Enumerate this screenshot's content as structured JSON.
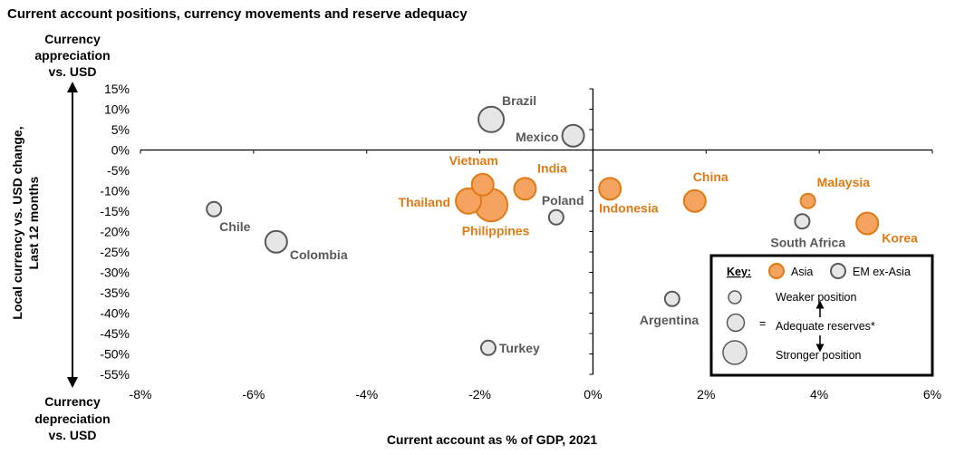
{
  "chart_data": {
    "type": "scatter",
    "title": "Current account positions, currency movements and reserve adequacy",
    "xlabel": "Current account as % of GDP, 2021",
    "ylabel_lines": [
      "Local currency vs. USD change,",
      "Last 12 months"
    ],
    "y_top_caption": [
      "Currency",
      "appreciation",
      "vs. USD"
    ],
    "y_bottom_caption": [
      "Currency",
      "depreciation",
      "vs. USD"
    ],
    "xlim": [
      -8,
      6
    ],
    "ylim": [
      -55,
      15
    ],
    "x_ticks": [
      -8,
      -6,
      -4,
      -2,
      0,
      2,
      4,
      6
    ],
    "x_tick_labels": [
      "-8%",
      "-6%",
      "-4%",
      "-2%",
      "0%",
      "2%",
      "4%",
      "6%"
    ],
    "y_ticks": [
      15,
      10,
      5,
      0,
      -5,
      -10,
      -15,
      -20,
      -25,
      -30,
      -35,
      -40,
      -45,
      -50,
      -55
    ],
    "y_tick_labels": [
      "15%",
      "10%",
      "5%",
      "0%",
      "-5%",
      "-10%",
      "-15%",
      "-20%",
      "-25%",
      "-30%",
      "-35%",
      "-40%",
      "-45%",
      "-50%",
      "-55%"
    ],
    "grid": false,
    "legend_position": "bottom-right",
    "colors": {
      "asia_fill": "#F4A460",
      "asia_stroke": "#E07A14",
      "asia_label": "#E07A14",
      "em_fill": "#E6E6E6",
      "em_stroke": "#595959",
      "em_label": "#595959"
    },
    "series": [
      {
        "name": "Asia",
        "points": [
          {
            "label": "Vietnam",
            "x": -1.95,
            "y": -8.5,
            "reserves": "adequate"
          },
          {
            "label": "India",
            "x": -1.2,
            "y": -9.5,
            "reserves": "adequate"
          },
          {
            "label": "Thailand",
            "x": -2.2,
            "y": -12.5,
            "reserves": "strong"
          },
          {
            "label": "Philippines",
            "x": -1.8,
            "y": -13.5,
            "reserves": "strongest"
          },
          {
            "label": "Indonesia",
            "x": 0.3,
            "y": -9.5,
            "reserves": "adequate"
          },
          {
            "label": "China",
            "x": 1.8,
            "y": -12.5,
            "reserves": "adequate"
          },
          {
            "label": "Malaysia",
            "x": 3.8,
            "y": -12.5,
            "reserves": "weaker"
          },
          {
            "label": "Korea",
            "x": 4.85,
            "y": -18,
            "reserves": "adequate"
          }
        ]
      },
      {
        "name": "EM ex-Asia",
        "points": [
          {
            "label": "Brazil",
            "x": -1.8,
            "y": 7.5,
            "reserves": "strong"
          },
          {
            "label": "Mexico",
            "x": -0.35,
            "y": 3.5,
            "reserves": "adequate"
          },
          {
            "label": "Poland",
            "x": -0.65,
            "y": -16.5,
            "reserves": "weaker"
          },
          {
            "label": "Chile",
            "x": -6.7,
            "y": -14.5,
            "reserves": "weaker"
          },
          {
            "label": "Colombia",
            "x": -5.6,
            "y": -22.5,
            "reserves": "adequate"
          },
          {
            "label": "South Africa",
            "x": 3.7,
            "y": -17.5,
            "reserves": "weaker"
          },
          {
            "label": "Argentina",
            "x": 1.4,
            "y": -36.5,
            "reserves": "weaker"
          },
          {
            "label": "Turkey",
            "x": -1.85,
            "y": -48.5,
            "reserves": "weaker"
          }
        ]
      }
    ]
  },
  "legend": {
    "key_label": "Key:",
    "asia_label": "Asia",
    "em_label": "EM ex-Asia",
    "weaker_label": "Weaker position",
    "equals": "=",
    "adequate_label": "Adequate reserves*",
    "stronger_label": "Stronger position"
  }
}
